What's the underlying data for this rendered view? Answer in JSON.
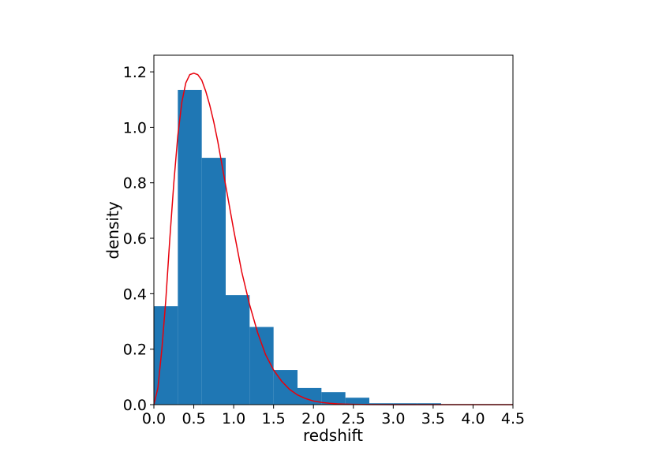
{
  "chart_data": {
    "type": "bar",
    "title": "",
    "xlabel": "redshift",
    "ylabel": "density",
    "xlim": [
      0.0,
      4.5
    ],
    "ylim": [
      0.0,
      1.26
    ],
    "grid": false,
    "legend": "none",
    "x_ticks": [
      "0.0",
      "0.5",
      "1.0",
      "1.5",
      "2.0",
      "2.5",
      "3.0",
      "3.5",
      "4.0",
      "4.5"
    ],
    "y_ticks": [
      "0.0",
      "0.2",
      "0.4",
      "0.6",
      "0.8",
      "1.0",
      "1.2"
    ],
    "histogram": {
      "color": "#1f77b4",
      "bin_edges": [
        0.0,
        0.3,
        0.6,
        0.9,
        1.2,
        1.5,
        1.8,
        2.1,
        2.4,
        2.7,
        3.0,
        3.3,
        3.6
      ],
      "values": [
        0.355,
        1.135,
        0.89,
        0.395,
        0.28,
        0.125,
        0.06,
        0.045,
        0.025,
        0.005,
        0.005,
        0.005
      ]
    },
    "curve": {
      "color": "#e8000b",
      "x": [
        0.0,
        0.05,
        0.1,
        0.15,
        0.2,
        0.25,
        0.3,
        0.35,
        0.4,
        0.45,
        0.5,
        0.55,
        0.6,
        0.65,
        0.7,
        0.75,
        0.8,
        0.85,
        0.9,
        0.95,
        1.0,
        1.1,
        1.2,
        1.3,
        1.4,
        1.5,
        1.6,
        1.7,
        1.8,
        1.9,
        2.0,
        2.1,
        2.2,
        2.3,
        2.4,
        2.5,
        2.7,
        3.0,
        3.5,
        4.0,
        4.5
      ],
      "y": [
        0.0,
        0.06,
        0.2,
        0.38,
        0.6,
        0.8,
        0.97,
        1.09,
        1.16,
        1.19,
        1.195,
        1.19,
        1.17,
        1.13,
        1.08,
        1.02,
        0.95,
        0.87,
        0.79,
        0.71,
        0.63,
        0.48,
        0.36,
        0.26,
        0.18,
        0.125,
        0.085,
        0.055,
        0.035,
        0.022,
        0.013,
        0.008,
        0.005,
        0.003,
        0.0017,
        0.001,
        0.0003,
        0.0,
        0.0,
        0.0,
        0.0
      ]
    }
  }
}
